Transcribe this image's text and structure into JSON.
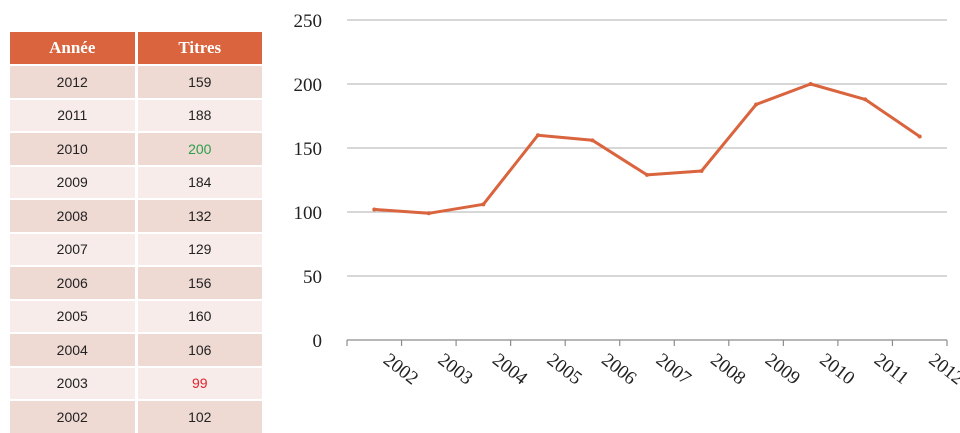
{
  "table": {
    "headers": [
      "Année",
      "Titres"
    ],
    "rows": [
      {
        "year": "2012",
        "titles": "159"
      },
      {
        "year": "2011",
        "titles": "188"
      },
      {
        "year": "2010",
        "titles": "200",
        "highlight": "#2e9e4a"
      },
      {
        "year": "2009",
        "titles": "184"
      },
      {
        "year": "2008",
        "titles": "132"
      },
      {
        "year": "2007",
        "titles": "129"
      },
      {
        "year": "2006",
        "titles": "156"
      },
      {
        "year": "2005",
        "titles": "160"
      },
      {
        "year": "2004",
        "titles": "106"
      },
      {
        "year": "2003",
        "titles": "99",
        "highlight": "#e0232e"
      },
      {
        "year": "2002",
        "titles": "102"
      }
    ]
  },
  "chart_data": {
    "type": "line",
    "categories": [
      "2002",
      "2003",
      "2004",
      "2005",
      "2006",
      "2007",
      "2008",
      "2009",
      "2010",
      "2011",
      "2012"
    ],
    "series": [
      {
        "values": [
          102,
          99,
          106,
          160,
          156,
          129,
          132,
          184,
          200,
          188,
          159
        ],
        "color": "#d9643e"
      }
    ],
    "ylim": [
      0,
      250
    ],
    "yticks": [
      0,
      50,
      100,
      150,
      200,
      250
    ],
    "grid": true,
    "gridColor": "#bfbfbf"
  }
}
